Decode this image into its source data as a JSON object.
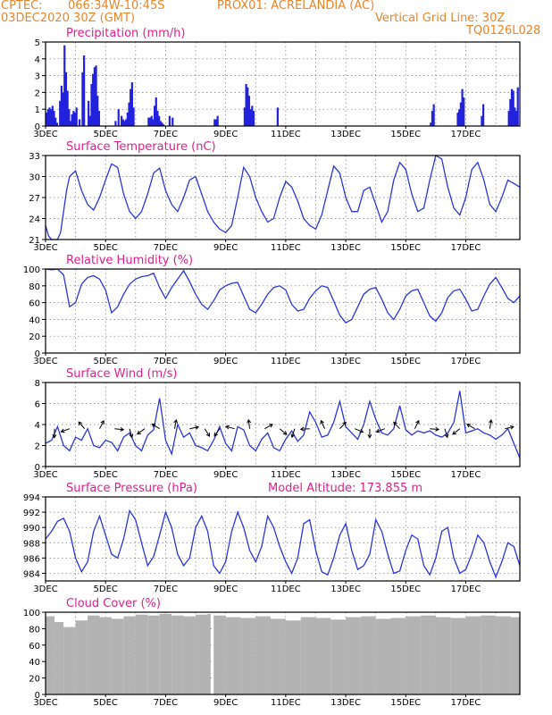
{
  "header": {
    "source": "CPTEC:",
    "coords": "066:34W-10:45S",
    "station": "PROX01: ACRELANDIA (AC)",
    "date": "03DEC2020 30Z (GMT)",
    "grid_note": "Vertical Grid Line: 30Z",
    "code": "TQ0126L028"
  },
  "colors": {
    "header": "#e8862a",
    "title": "#e0208c",
    "series": "#2b36d9",
    "bars": "#2222dd",
    "cloud": "#b3b3b3",
    "arrows": "#000000"
  },
  "x_ticks": [
    "3DEC",
    "5DEC",
    "7DEC",
    "9DEC",
    "11DEC",
    "13DEC",
    "15DEC",
    "17DEC"
  ],
  "chart_data": [
    {
      "type": "bar",
      "title": "Precipitation (mm/h)",
      "ylim": [
        0,
        5
      ],
      "yticks": [
        "0",
        "1",
        "2",
        "3",
        "4",
        "5"
      ],
      "x": [
        3.0,
        3.05,
        3.1,
        3.15,
        3.2,
        3.25,
        3.3,
        3.35,
        3.45,
        3.5,
        3.55,
        3.6,
        3.65,
        3.7,
        3.75,
        3.8,
        3.85,
        3.9,
        3.95,
        4.0,
        4.1,
        4.2,
        4.25,
        4.4,
        4.45,
        4.5,
        4.55,
        4.6,
        4.65,
        4.7,
        4.75,
        5.3,
        5.4,
        5.5,
        5.55,
        5.6,
        5.65,
        5.7,
        5.75,
        5.8,
        5.85,
        5.9,
        6.4,
        6.45,
        6.5,
        6.55,
        6.6,
        6.65,
        6.7,
        6.75,
        6.8,
        6.85,
        6.9,
        7.1,
        7.2,
        8.6,
        8.65,
        8.7,
        9.6,
        9.65,
        9.7,
        9.75,
        9.8,
        9.85,
        9.9,
        10.7,
        15.8,
        15.85,
        15.9,
        16.7,
        16.75,
        16.8,
        16.85,
        16.9,
        17.5,
        17.55,
        18.4,
        18.45,
        18.5,
        18.55,
        18.6,
        18.65,
        18.7
      ],
      "values": [
        0.8,
        1.0,
        1.1,
        1.0,
        1.2,
        0.9,
        0.5,
        0.2,
        1.5,
        2.4,
        2.0,
        4.8,
        3.2,
        2.1,
        1.0,
        0.3,
        0.7,
        0.9,
        0.8,
        1.1,
        0.4,
        3.2,
        4.2,
        1.5,
        0.6,
        2.5,
        3.1,
        3.5,
        3.6,
        1.8,
        0.9,
        0.3,
        1.0,
        0.6,
        0.4,
        0.3,
        0.4,
        0.8,
        1.4,
        2.2,
        2.6,
        1.1,
        0.5,
        0.5,
        0.6,
        0.4,
        1.2,
        1.7,
        0.9,
        0.6,
        0.3,
        0.2,
        0.1,
        0.6,
        0.5,
        0.4,
        0.4,
        0.6,
        1.1,
        2.5,
        2.3,
        1.8,
        1.0,
        1.2,
        0.9,
        1.1,
        0.2,
        0.9,
        1.3,
        0.8,
        1.0,
        1.4,
        2.2,
        1.7,
        0.6,
        1.3,
        0.9,
        1.6,
        2.2,
        2.1,
        1.1,
        0.9,
        2.3
      ]
    },
    {
      "type": "line",
      "title": "Surface Temperature (nC)",
      "ylim": [
        21,
        33
      ],
      "yticks": [
        "21",
        "24",
        "27",
        "30",
        "33"
      ],
      "x": [
        3.0,
        3.1,
        3.2,
        3.3,
        3.4,
        3.5,
        3.6,
        3.7,
        3.8,
        4.0,
        4.2,
        4.4,
        4.6,
        4.8,
        5.0,
        5.2,
        5.4,
        5.6,
        5.8,
        6.0,
        6.2,
        6.4,
        6.6,
        6.8,
        7.0,
        7.2,
        7.4,
        7.6,
        7.8,
        8.0,
        8.2,
        8.4,
        8.6,
        8.8,
        9.0,
        9.2,
        9.4,
        9.6,
        9.8,
        10.0,
        10.2,
        10.4,
        10.6,
        10.8,
        11.0,
        11.2,
        11.4,
        11.6,
        11.8,
        12.0,
        12.2,
        12.4,
        12.6,
        12.8,
        13.0,
        13.2,
        13.4,
        13.6,
        13.8,
        14.0,
        14.2,
        14.4,
        14.6,
        14.8,
        15.0,
        15.2,
        15.4,
        15.6,
        15.8,
        16.0,
        16.2,
        16.4,
        16.6,
        16.8,
        17.0,
        17.2,
        17.4,
        17.6,
        17.8,
        18.0,
        18.2,
        18.4,
        18.6,
        18.8
      ],
      "values": [
        23.0,
        21.5,
        21.0,
        21.0,
        20.8,
        22.0,
        25.0,
        28.0,
        30.0,
        30.8,
        28.0,
        26.0,
        25.2,
        27.0,
        29.5,
        31.8,
        31.3,
        27.5,
        25.0,
        24.0,
        25.0,
        27.5,
        30.5,
        31.2,
        28.0,
        26.0,
        25.0,
        27.0,
        29.5,
        30.0,
        27.5,
        25.0,
        23.5,
        22.5,
        22.0,
        23.0,
        27.0,
        31.3,
        30.0,
        27.0,
        25.0,
        23.5,
        24.0,
        27.0,
        29.3,
        28.5,
        26.5,
        24.0,
        23.0,
        22.5,
        24.5,
        28.0,
        31.5,
        30.5,
        27.0,
        25.0,
        25.0,
        28.0,
        28.5,
        26.0,
        23.5,
        25.0,
        29.5,
        32.0,
        31.0,
        27.5,
        25.0,
        25.5,
        29.5,
        33.0,
        32.5,
        28.5,
        25.5,
        24.5,
        27.0,
        31.0,
        32.0,
        29.5,
        26.0,
        25.0,
        27.0,
        29.5,
        29.0,
        28.5
      ]
    },
    {
      "type": "line",
      "title": "Relative Humidity (%)",
      "ylim": [
        0,
        100
      ],
      "yticks": [
        "0",
        "20",
        "40",
        "60",
        "80",
        "100"
      ],
      "x": [
        3.0,
        3.2,
        3.4,
        3.6,
        3.8,
        4.0,
        4.2,
        4.4,
        4.6,
        4.8,
        5.0,
        5.2,
        5.4,
        5.6,
        5.8,
        6.0,
        6.2,
        6.4,
        6.6,
        6.8,
        7.0,
        7.2,
        7.4,
        7.6,
        7.8,
        8.0,
        8.2,
        8.4,
        8.6,
        8.8,
        9.0,
        9.2,
        9.4,
        9.6,
        9.8,
        10.0,
        10.2,
        10.4,
        10.6,
        10.8,
        11.0,
        11.2,
        11.4,
        11.6,
        11.8,
        12.0,
        12.2,
        12.4,
        12.6,
        12.8,
        13.0,
        13.2,
        13.4,
        13.6,
        13.8,
        14.0,
        14.2,
        14.4,
        14.6,
        14.8,
        15.0,
        15.2,
        15.4,
        15.6,
        15.8,
        16.0,
        16.2,
        16.4,
        16.6,
        16.8,
        17.0,
        17.2,
        17.4,
        17.6,
        17.8,
        18.0,
        18.2,
        18.4,
        18.6,
        18.8
      ],
      "values": [
        100,
        99,
        100,
        93,
        55,
        60,
        82,
        90,
        92,
        88,
        75,
        48,
        55,
        70,
        82,
        88,
        91,
        92,
        95,
        78,
        65,
        78,
        88,
        98,
        85,
        70,
        58,
        52,
        62,
        75,
        80,
        83,
        84,
        68,
        52,
        48,
        58,
        70,
        78,
        80,
        75,
        58,
        50,
        52,
        65,
        74,
        80,
        78,
        62,
        45,
        36,
        40,
        55,
        70,
        76,
        78,
        64,
        48,
        40,
        52,
        68,
        74,
        76,
        60,
        44,
        38,
        48,
        66,
        74,
        76,
        64,
        50,
        52,
        68,
        82,
        90,
        78,
        65,
        60,
        68
      ]
    },
    {
      "type": "line",
      "title": "Surface Wind (m/s)",
      "ylim": [
        0,
        8
      ],
      "yticks": [
        "0",
        "2",
        "4",
        "6",
        "8"
      ],
      "x": [
        3.0,
        3.2,
        3.4,
        3.6,
        3.8,
        4.0,
        4.2,
        4.4,
        4.6,
        4.8,
        5.0,
        5.2,
        5.4,
        5.6,
        5.8,
        6.0,
        6.2,
        6.4,
        6.6,
        6.8,
        7.0,
        7.2,
        7.4,
        7.6,
        7.8,
        8.0,
        8.2,
        8.4,
        8.6,
        8.8,
        9.0,
        9.2,
        9.4,
        9.6,
        9.8,
        10.0,
        10.2,
        10.4,
        10.6,
        10.8,
        11.0,
        11.2,
        11.4,
        11.6,
        11.8,
        12.0,
        12.2,
        12.4,
        12.6,
        12.8,
        13.0,
        13.2,
        13.4,
        13.6,
        13.8,
        14.0,
        14.2,
        14.4,
        14.6,
        14.8,
        15.0,
        15.2,
        15.4,
        15.6,
        15.8,
        16.0,
        16.2,
        16.4,
        16.6,
        16.8,
        17.0,
        17.2,
        17.4,
        17.6,
        17.8,
        18.0,
        18.2,
        18.4,
        18.6,
        18.8
      ],
      "values": [
        2.2,
        2.5,
        3.8,
        2.0,
        1.5,
        2.8,
        2.5,
        3.6,
        2.0,
        1.8,
        2.5,
        2.3,
        1.5,
        2.8,
        3.2,
        2.0,
        1.5,
        3.0,
        3.5,
        6.5,
        2.5,
        1.2,
        4.0,
        2.8,
        3.2,
        2.0,
        1.8,
        1.5,
        2.5,
        3.8,
        2.2,
        1.5,
        3.8,
        3.5,
        2.0,
        1.5,
        2.6,
        3.2,
        1.8,
        1.5,
        2.6,
        3.4,
        2.4,
        3.0,
        5.2,
        4.2,
        2.8,
        3.0,
        4.2,
        6.2,
        3.8,
        3.2,
        2.6,
        4.0,
        6.2,
        4.5,
        3.2,
        3.0,
        3.6,
        5.8,
        3.5,
        3.0,
        3.4,
        3.2,
        3.4,
        3.0,
        2.8,
        3.2,
        4.2,
        7.2,
        3.2,
        3.4,
        3.6,
        3.2,
        3.0,
        2.6,
        3.0,
        3.6,
        2.2,
        0.8
      ]
    },
    {
      "type": "line",
      "title": "Surface Pressure (hPa)",
      "annotation": "Model Altitude: 173.855 m",
      "ylim": [
        983,
        994
      ],
      "yticks": [
        "984",
        "986",
        "988",
        "990",
        "992",
        "994"
      ],
      "x": [
        3.0,
        3.2,
        3.4,
        3.6,
        3.8,
        4.0,
        4.2,
        4.4,
        4.6,
        4.8,
        5.0,
        5.2,
        5.4,
        5.6,
        5.8,
        6.0,
        6.2,
        6.4,
        6.6,
        6.8,
        7.0,
        7.2,
        7.4,
        7.6,
        7.8,
        8.0,
        8.2,
        8.4,
        8.6,
        8.8,
        9.0,
        9.2,
        9.4,
        9.6,
        9.8,
        10.0,
        10.2,
        10.4,
        10.6,
        10.8,
        11.0,
        11.2,
        11.4,
        11.6,
        11.8,
        12.0,
        12.2,
        12.4,
        12.6,
        12.8,
        13.0,
        13.2,
        13.4,
        13.6,
        13.8,
        14.0,
        14.2,
        14.4,
        14.6,
        14.8,
        15.0,
        15.2,
        15.4,
        15.6,
        15.8,
        16.0,
        16.2,
        16.4,
        16.6,
        16.8,
        17.0,
        17.2,
        17.4,
        17.6,
        17.8,
        18.0,
        18.2,
        18.4,
        18.6,
        18.8
      ],
      "values": [
        988.5,
        989.5,
        990.8,
        991.2,
        989.5,
        986.0,
        984.2,
        985.5,
        989.5,
        991.5,
        989.0,
        986.5,
        986.0,
        988.5,
        992.2,
        991.0,
        988.0,
        985.0,
        986.2,
        989.0,
        992.0,
        990.0,
        986.5,
        985.0,
        986.0,
        990.0,
        991.5,
        989.5,
        985.0,
        984.0,
        985.5,
        989.5,
        992.0,
        990.0,
        987.0,
        985.5,
        987.5,
        991.5,
        990.0,
        987.5,
        985.5,
        984.0,
        986.0,
        990.5,
        991.0,
        987.0,
        984.2,
        983.8,
        986.0,
        989.0,
        990.5,
        987.0,
        984.5,
        985.0,
        986.5,
        991.0,
        989.5,
        986.5,
        984.0,
        984.3,
        987.0,
        989.0,
        988.5,
        985.0,
        983.8,
        986.0,
        989.5,
        990.0,
        986.0,
        984.0,
        984.5,
        986.5,
        989.0,
        988.0,
        985.5,
        983.5,
        985.5,
        988.0,
        987.5,
        985.0
      ]
    },
    {
      "type": "area",
      "title": "Cloud Cover (%)",
      "ylim": [
        0,
        100
      ],
      "yticks": [
        "0",
        "20",
        "40",
        "60",
        "80",
        "100"
      ],
      "x": [
        3.0,
        3.3,
        3.6,
        4.0,
        4.4,
        4.8,
        5.2,
        5.6,
        6.0,
        6.4,
        6.8,
        7.2,
        7.6,
        8.0,
        8.4,
        8.5,
        8.6,
        9.0,
        9.5,
        10.0,
        10.5,
        11.0,
        11.5,
        12.0,
        12.5,
        13.0,
        13.5,
        14.0,
        14.5,
        15.0,
        15.5,
        16.0,
        16.5,
        17.0,
        17.5,
        18.0,
        18.5,
        18.8
      ],
      "values": [
        95,
        88,
        82,
        90,
        96,
        94,
        92,
        95,
        97,
        96,
        98,
        96,
        95,
        97,
        98,
        0,
        96,
        94,
        93,
        95,
        92,
        90,
        94,
        93,
        91,
        94,
        95,
        92,
        93,
        95,
        96,
        94,
        93,
        95,
        96,
        95,
        94,
        95
      ]
    }
  ]
}
